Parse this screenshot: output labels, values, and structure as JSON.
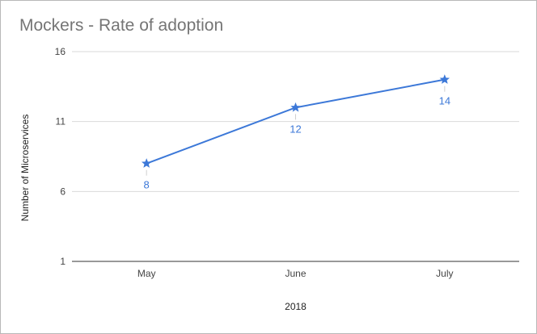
{
  "chart_data": {
    "type": "line",
    "title": "Mockers - Rate of adoption",
    "xlabel": "2018",
    "ylabel": "Number of Microservices",
    "categories": [
      "May",
      "June",
      "July"
    ],
    "series": [
      {
        "values": [
          8,
          12,
          14
        ],
        "color": "#3c78d8",
        "marker": "star",
        "data_labels": true
      }
    ],
    "yticks": [
      1,
      6,
      11,
      16
    ],
    "ylim": [
      1,
      16
    ],
    "grid": true,
    "legend": "none"
  }
}
